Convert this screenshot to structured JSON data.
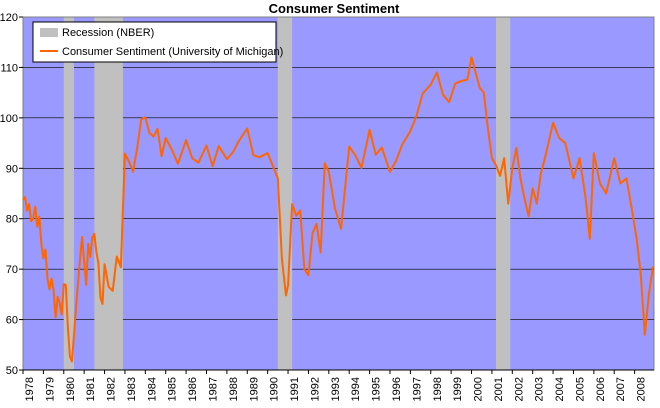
{
  "chart_data": {
    "type": "line",
    "title": "Consumer Sentiment",
    "xlabel": "",
    "ylabel": "",
    "xlim": [
      1978.0,
      2008.95
    ],
    "ylim": [
      50,
      120
    ],
    "y_ticks": [
      50,
      60,
      70,
      80,
      90,
      100,
      110,
      120
    ],
    "x_tick_labels": [
      "1978",
      "1979",
      "1980",
      "1981",
      "1982",
      "1983",
      "1984",
      "1985",
      "1986",
      "1987",
      "1988",
      "1989",
      "1990",
      "1991",
      "1992",
      "1993",
      "1994",
      "1995",
      "1996",
      "1997",
      "1998",
      "1999",
      "2000",
      "2001",
      "2002",
      "2003",
      "2004",
      "2005",
      "2006",
      "2007",
      "2008"
    ],
    "grid": "horizontal",
    "legend": "top-left",
    "colors": {
      "plot_bg": "#9999ff",
      "recession": "#c0c0c0",
      "line": "#ff6600"
    },
    "series": [
      {
        "name": "Recession (NBER)",
        "kind": "band",
        "intervals": [
          [
            1980.0,
            1980.5
          ],
          [
            1981.5,
            1982.9
          ],
          [
            1990.5,
            1991.2
          ],
          [
            2001.2,
            2001.9
          ]
        ]
      },
      {
        "name": "Consumer Sentiment (University of Michigan)",
        "kind": "line",
        "x": [
          1978.0,
          1978.1,
          1978.2,
          1978.3,
          1978.4,
          1978.5,
          1978.6,
          1978.7,
          1978.8,
          1978.9,
          1979.0,
          1979.1,
          1979.2,
          1979.3,
          1979.4,
          1979.5,
          1979.6,
          1979.7,
          1979.8,
          1979.9,
          1980.0,
          1980.1,
          1980.2,
          1980.3,
          1980.4,
          1980.5,
          1980.6,
          1980.7,
          1980.8,
          1980.9,
          1981.0,
          1981.1,
          1981.2,
          1981.3,
          1981.4,
          1981.5,
          1981.6,
          1981.7,
          1981.8,
          1981.9,
          1982.0,
          1982.2,
          1982.4,
          1982.6,
          1982.8,
          1983.0,
          1983.2,
          1983.4,
          1983.6,
          1983.8,
          1984.0,
          1984.2,
          1984.4,
          1984.6,
          1984.8,
          1985.0,
          1985.3,
          1985.6,
          1986.0,
          1986.3,
          1986.6,
          1987.0,
          1987.3,
          1987.6,
          1988.0,
          1988.3,
          1988.6,
          1989.0,
          1989.3,
          1989.6,
          1990.0,
          1990.3,
          1990.5,
          1990.7,
          1990.9,
          1991.0,
          1991.2,
          1991.4,
          1991.6,
          1991.8,
          1992.0,
          1992.2,
          1992.4,
          1992.6,
          1992.8,
          1993.0,
          1993.3,
          1993.6,
          1994.0,
          1994.3,
          1994.6,
          1995.0,
          1995.3,
          1995.6,
          1996.0,
          1996.3,
          1996.6,
          1997.0,
          1997.3,
          1997.6,
          1998.0,
          1998.3,
          1998.6,
          1998.9,
          1999.2,
          1999.5,
          1999.8,
          2000.0,
          2000.2,
          2000.4,
          2000.6,
          2000.8,
          2001.0,
          2001.2,
          2001.4,
          2001.6,
          2001.8,
          2002.0,
          2002.2,
          2002.4,
          2002.6,
          2002.8,
          2003.0,
          2003.2,
          2003.4,
          2003.6,
          2004.0,
          2004.3,
          2004.6,
          2005.0,
          2005.3,
          2005.6,
          2005.8,
          2006.0,
          2006.3,
          2006.6,
          2007.0,
          2007.3,
          2007.6,
          2007.9,
          2008.1,
          2008.3,
          2008.5,
          2008.7,
          2008.9
        ],
        "y": [
          83.7,
          84.3,
          81.6,
          82.9,
          79.5,
          80.0,
          82.4,
          78.4,
          80.4,
          75.0,
          72.1,
          73.9,
          68.1,
          66.0,
          68.1,
          65.8,
          60.4,
          64.5,
          63.3,
          61.0,
          67.0,
          66.9,
          58.5,
          52.7,
          51.7,
          57.0,
          62.3,
          67.4,
          72.1,
          76.4,
          71.4,
          66.9,
          75.0,
          72.4,
          76.3,
          77.0,
          73.4,
          71.1,
          64.3,
          63.1,
          71.0,
          66.5,
          65.7,
          72.5,
          70.4,
          92.9,
          91.3,
          89.3,
          94.0,
          99.7,
          100.1,
          97.0,
          96.3,
          97.8,
          92.4,
          96.0,
          93.7,
          90.9,
          95.6,
          92.0,
          91.1,
          94.5,
          90.4,
          94.4,
          91.8,
          93.2,
          95.5,
          97.9,
          92.6,
          92.2,
          93.0,
          90.0,
          88.0,
          72.0,
          64.8,
          66.8,
          82.9,
          80.6,
          81.6,
          70.0,
          68.8,
          77.1,
          79.0,
          73.3,
          91.0,
          89.3,
          82.1,
          78.0,
          94.3,
          92.6,
          90.1,
          97.6,
          92.7,
          94.1,
          89.3,
          91.5,
          94.7,
          97.4,
          100.4,
          104.8,
          106.6,
          109.0,
          104.6,
          103.1,
          106.8,
          107.3,
          107.6,
          112.0,
          109.0,
          106.0,
          105.0,
          98.0,
          92.0,
          90.6,
          88.5,
          92.0,
          83.0,
          90.0,
          94.0,
          88.0,
          84.0,
          80.5,
          86.0,
          83.0,
          89.0,
          92.0,
          99.0,
          96.0,
          95.0,
          88.0,
          92.0,
          84.0,
          76.0,
          93.0,
          87.0,
          85.0,
          92.0,
          87.0,
          88.0,
          81.0,
          76.0,
          69.0,
          57.0,
          65.0,
          70.5
        ]
      }
    ]
  }
}
